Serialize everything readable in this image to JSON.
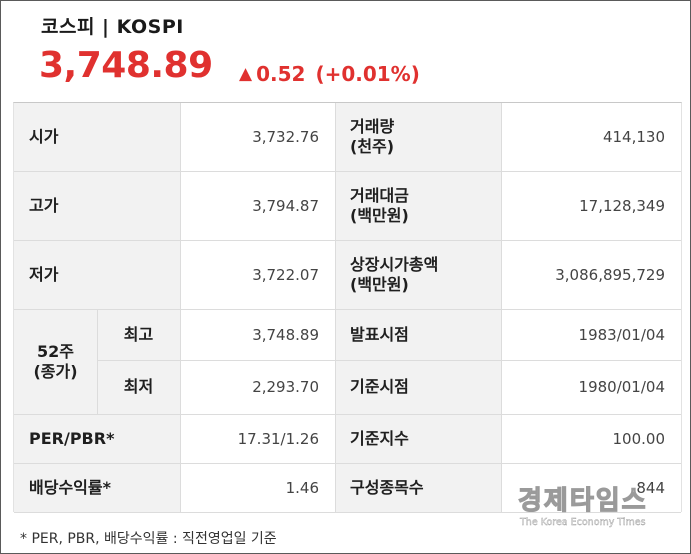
{
  "header": {
    "title": "코스피 | KOSPI",
    "price": "3,748.89",
    "change_value": "0.52",
    "change_pct": "(+0.01%)",
    "arrow_icon": "triangle-up-icon",
    "up_color": "#e0312f"
  },
  "rows": {
    "open": {
      "label": "시가",
      "value": "3,732.76"
    },
    "high": {
      "label": "고가",
      "value": "3,794.87"
    },
    "low": {
      "label": "저가",
      "value": "3,722.07"
    },
    "week52": {
      "label_line1": "52주",
      "label_line2": "(종가)",
      "high_label": "최고",
      "high_value": "3,748.89",
      "low_label": "최저",
      "low_value": "2,293.70"
    },
    "per_pbr": {
      "label": "PER/PBR*",
      "value": "17.31/1.26"
    },
    "dividend": {
      "label": "배당수익률*",
      "value": "1.46"
    },
    "volume": {
      "label_line1": "거래량",
      "label_line2": "(천주)",
      "value": "414,130"
    },
    "trade_value": {
      "label_line1": "거래대금",
      "label_line2": "(백만원)",
      "value": "17,128,349"
    },
    "market_cap": {
      "label_line1": "상장시가총액",
      "label_line2": "(백만원)",
      "value": "3,086,895,729"
    },
    "announce_date": {
      "label": "발표시점",
      "value": "1983/01/04"
    },
    "base_date": {
      "label": "기준시점",
      "value": "1980/01/04"
    },
    "base_index": {
      "label": "기준지수",
      "value": "100.00"
    },
    "constituents": {
      "label": "구성종목수",
      "value": "844"
    }
  },
  "footnote": "* PER, PBR, 배당수익률 : 직전영업일 기준",
  "watermark": {
    "title": "경제타임스",
    "subtitle": "The Korea Economy Times"
  }
}
